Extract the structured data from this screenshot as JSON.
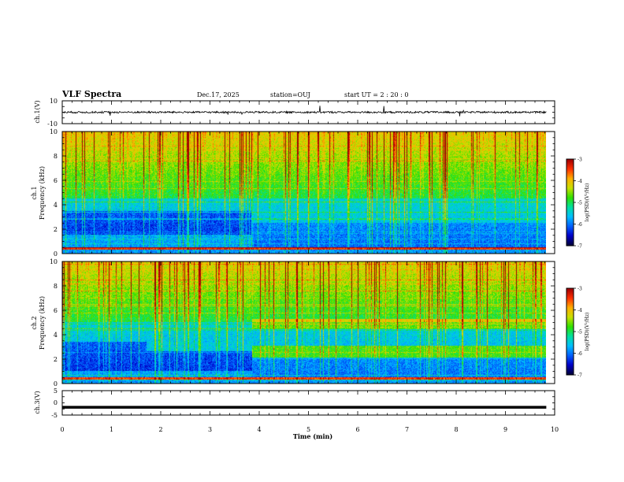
{
  "header": {
    "title": "VLF Spectra",
    "date": "Dec.17, 2025",
    "station": "station=OUJ",
    "start": "start  UT =   2 : 20 : 0"
  },
  "colors": {
    "colormap": [
      "#00003a",
      "#0000c8",
      "#0060ff",
      "#00c0ff",
      "#00e0a0",
      "#30e000",
      "#c8e000",
      "#ffb000",
      "#ff3000",
      "#a00000"
    ],
    "waveform": "#000000",
    "frame": "#000000"
  },
  "chart_data": [
    {
      "type": "line",
      "title": "",
      "panel": "ch.1",
      "ylabel": "ch.1(V)",
      "ylim": [
        -10,
        10
      ],
      "y_ticks": [
        "10",
        "-10"
      ],
      "xlim": [
        0,
        10
      ],
      "mean_level": 0.0,
      "amplitude_note": "noisy waveform with sporadic spikes"
    },
    {
      "type": "heatmap",
      "title": "",
      "panel": "ch.1",
      "ylabel": "ch.1 Frequency (kHz)",
      "ylim": [
        0,
        10
      ],
      "y_ticks": [
        "0",
        "2",
        "4",
        "6",
        "8",
        "10"
      ],
      "xlim": [
        0,
        10
      ],
      "data_end_min": 9.83,
      "colorbar": {
        "label": "log(PSD)(V²/Hz)",
        "range": [
          -7,
          -3
        ],
        "ticks": [
          "-3",
          "-4",
          "-5",
          "-6",
          "-7"
        ]
      },
      "features": {
        "change_time_min": 3.85,
        "hum_band_khz": 0.4,
        "quiet_band_before_khz": [
          1.5,
          3.5
        ],
        "quiet_band_after_khz": [
          0.5,
          2.5
        ],
        "noise_floor_khz": 4.5
      }
    },
    {
      "type": "heatmap",
      "title": "",
      "panel": "ch.2",
      "ylabel": "ch.2 Frequency (kHz)",
      "ylim": [
        0,
        10
      ],
      "y_ticks": [
        "0",
        "2",
        "4",
        "6",
        "8",
        "10"
      ],
      "xlim": [
        0,
        10
      ],
      "data_end_min": 9.83,
      "colorbar": {
        "label": "log(PSD)(V²/Hz)",
        "range": [
          -7,
          -3
        ],
        "ticks": [
          "-3",
          "-4",
          "-5",
          "-6",
          "-7"
        ]
      },
      "features": {
        "change_time_min": 3.85,
        "band_after_khz": [
          2.6,
          4.9
        ],
        "hum_band_khz": 0.4,
        "noise_floor_khz": 5.0
      }
    },
    {
      "type": "line",
      "title": "",
      "panel": "ch.3",
      "ylabel": "ch.3(V)",
      "ylim": [
        -5,
        5
      ],
      "y_ticks": [
        "5",
        "0",
        "-5"
      ],
      "xlim": [
        0,
        10
      ],
      "mean_level": -1.8,
      "amplitude_note": "flat thick trace"
    }
  ],
  "x_axis": {
    "label": "Time  (min)",
    "ticks": [
      "0",
      "1",
      "2",
      "3",
      "4",
      "5",
      "6",
      "7",
      "8",
      "9",
      "10"
    ]
  }
}
